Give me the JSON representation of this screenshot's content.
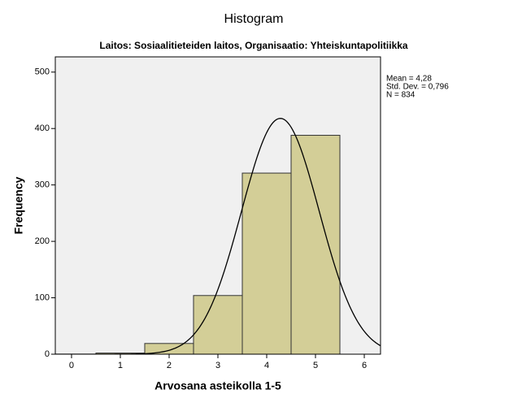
{
  "chart_data": {
    "type": "histogram",
    "title": "Histogram",
    "subtitle": "Laitos: Sosiaalitieteiden laitos, Organisaatio: Yhteiskuntapolitiikka",
    "x_label": "Arvosana asteikolla 1-5",
    "y_label": "Frequency",
    "bins": [
      0.5,
      1.5,
      2.5,
      3.5,
      4.5,
      5.5
    ],
    "values": [
      2,
      19,
      104,
      321,
      388
    ],
    "color": "#d3ce97",
    "xlim": [
      -0.333,
      6.333
    ],
    "ylim": [
      0,
      527
    ],
    "xticks": [
      0,
      1,
      2,
      3,
      4,
      5,
      6
    ],
    "yticks": [
      0,
      100,
      200,
      300,
      400,
      500
    ],
    "stats": [
      {
        "value": 4.28,
        "label": "Mean = 4,28"
      },
      {
        "value": 0.796,
        "label": "Std. Dev. = 0,796"
      },
      {
        "value": 834,
        "label": "N = 834"
      }
    ]
  }
}
